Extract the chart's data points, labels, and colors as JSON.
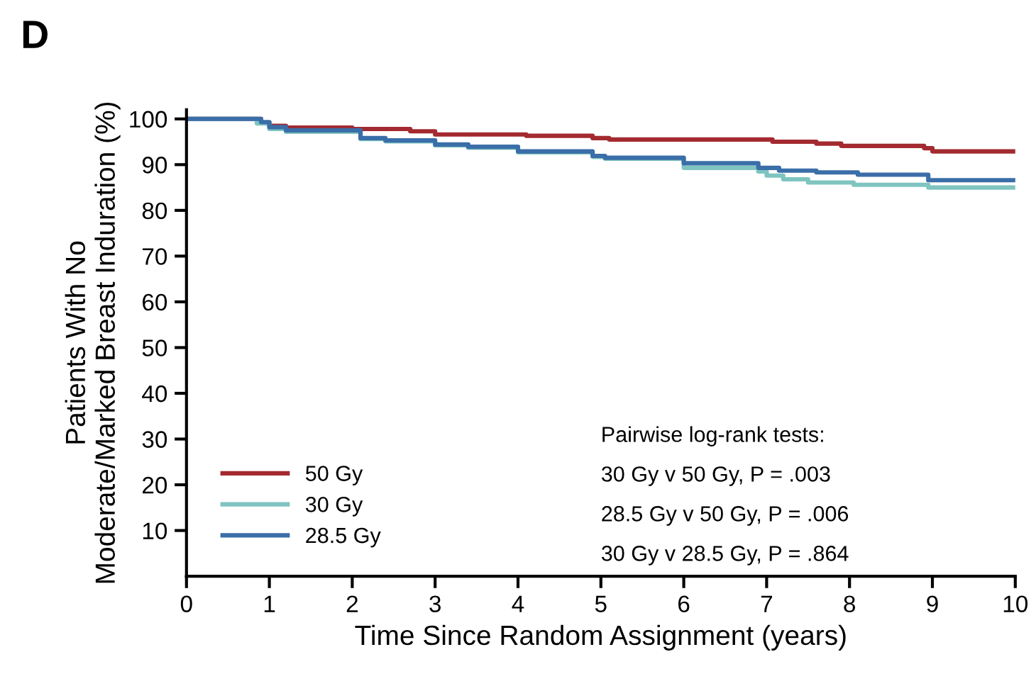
{
  "chart_data": {
    "type": "step",
    "title": "D",
    "xlabel": "Time Since Random Assignment (years)",
    "ylabel": "Patients With No\nModerate/Marked Breast Induration (%)",
    "xlim": [
      0,
      10
    ],
    "ylim": [
      0,
      102
    ],
    "xticks": [
      0,
      1,
      2,
      3,
      4,
      5,
      6,
      7,
      8,
      9,
      10
    ],
    "yticks": [
      10,
      20,
      30,
      40,
      50,
      60,
      70,
      80,
      90,
      100
    ],
    "grid": false,
    "legend": "bottom left",
    "series": [
      {
        "name": "50 Gy",
        "color": "#a32a30",
        "x": [
          0,
          0.9,
          1.0,
          1.2,
          2.0,
          2.7,
          3.0,
          4.1,
          4.9,
          5.1,
          7.07,
          7.6,
          7.9,
          8.9,
          9.0,
          10
        ],
        "values": [
          100,
          99.2,
          98.5,
          98.1,
          97.8,
          97.3,
          96.6,
          96.3,
          95.8,
          95.5,
          95.0,
          94.6,
          94.1,
          93.6,
          92.9,
          92.9
        ]
      },
      {
        "name": "30 Gy",
        "color": "#7fc4c0",
        "x": [
          0,
          0.85,
          1.0,
          1.2,
          2.1,
          2.4,
          3.0,
          3.4,
          4.0,
          4.9,
          5.05,
          6.0,
          6.9,
          7.0,
          7.2,
          7.5,
          8.05,
          8.95,
          10
        ],
        "values": [
          100,
          99,
          97.8,
          97.2,
          95.6,
          95.1,
          94.2,
          93.7,
          92.7,
          91.7,
          91.3,
          89.3,
          88.5,
          87.6,
          86.8,
          86.1,
          85.6,
          85.0,
          85.0
        ]
      },
      {
        "name": "28.5 Gy",
        "color": "#3a6ea8",
        "x": [
          0,
          0.9,
          1.0,
          1.2,
          2.1,
          2.4,
          3.0,
          3.4,
          4.0,
          4.9,
          5.05,
          6.0,
          6.9,
          7.15,
          7.6,
          8.1,
          8.95,
          10
        ],
        "values": [
          100,
          99.3,
          98.2,
          97.5,
          95.8,
          95.3,
          94.4,
          93.9,
          92.9,
          91.9,
          91.5,
          90.3,
          89.3,
          88.7,
          88.3,
          87.8,
          86.6,
          86.6
        ]
      }
    ],
    "annotations": [
      "Pairwise log-rank tests:",
      "30 Gy v 50 Gy, P = .003",
      "28.5 Gy v 50 Gy, P = .006",
      "30 Gy v 28.5 Gy, P = .864"
    ]
  }
}
